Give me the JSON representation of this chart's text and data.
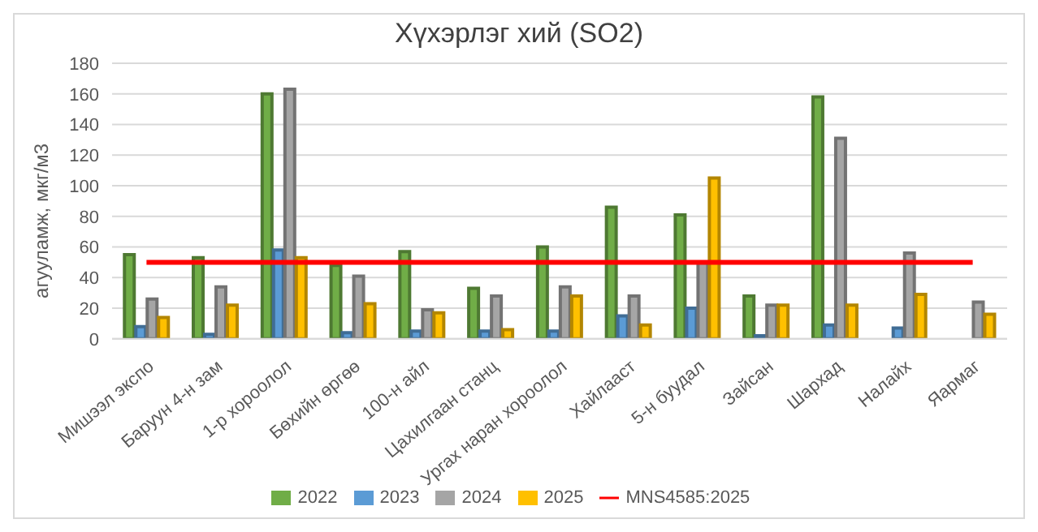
{
  "chart_data": {
    "type": "bar",
    "title": "Хүхэрлэг хий (SO2)",
    "ylabel": "агууламж, мкг/м3",
    "categories": [
      "Мишээл экспо",
      "Баруун 4-н зам",
      "1-р хороолол",
      "Бөхийн өргөө",
      "100-н айл",
      "Цахилгаан станц",
      "Ургах наран хороолол",
      "Хайлааст",
      "5-н буудал",
      "Зайсан",
      "Шархад",
      "Налайх",
      "Яармаг"
    ],
    "series": [
      {
        "name": "2022",
        "color": "#70ad47",
        "values": [
          55,
          53,
          160,
          48,
          57,
          33,
          60,
          86,
          81,
          28,
          158,
          null,
          null
        ]
      },
      {
        "name": "2023",
        "color": "#5b9bd5",
        "values": [
          8,
          3,
          58,
          4,
          5,
          5,
          5,
          15,
          20,
          2,
          9,
          7,
          null
        ]
      },
      {
        "name": "2024",
        "color": "#a5a5a5",
        "values": [
          26,
          34,
          163,
          41,
          19,
          28,
          34,
          28,
          50,
          22,
          131,
          56,
          24
        ]
      },
      {
        "name": "2025",
        "color": "#ffc000",
        "values": [
          14,
          22,
          53,
          23,
          17,
          6,
          28,
          9,
          105,
          22,
          22,
          29,
          16
        ]
      },
      {
        "name": "MNS4585:2025",
        "type": "line",
        "color": "#ff0000",
        "marker": "none",
        "values": [
          50,
          50,
          50,
          50,
          50,
          50,
          50,
          50,
          50,
          50,
          50,
          50,
          50
        ]
      }
    ],
    "ylim": [
      0,
      180
    ],
    "yticks": [
      0,
      20,
      40,
      60,
      80,
      100,
      120,
      140,
      160,
      180
    ],
    "grid": "y",
    "legend": "bottom"
  }
}
